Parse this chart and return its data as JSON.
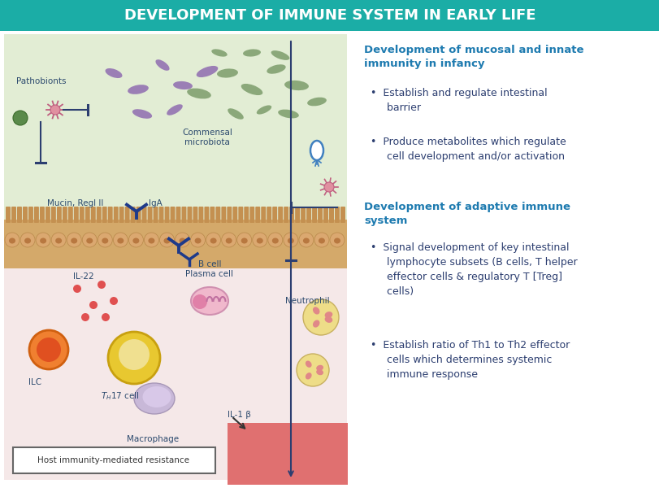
{
  "title": "DEVELOPMENT OF IMMUNE SYSTEM IN EARLY LIFE",
  "title_bg_color": "#1BADA6",
  "title_text_color": "#FFFFFF",
  "bg_color": "#FFFFFF",
  "left_panel_bg_top": "#E2EDD4",
  "left_panel_bg_bottom": "#F5E8E8",
  "intestine_color": "#D4A96A",
  "intestine_villus_color": "#C49050",
  "blood_vessel_color": "#E07070",
  "heading_color": "#1E7BB0",
  "bullet_color": "#2C3E70",
  "label_color": "#2C4A6E",
  "purple_bact": "#9B7FB5",
  "green_bact": "#8BA87A",
  "right_text_heading1": "Development of mucosal and innate\nimmunity in infancy",
  "right_text_heading2": "Development of adaptive immune\nsystem",
  "right_bullet1": "Establish and regulate intestinal\nbarrier",
  "right_bullet2": "Produce metabolites which regulate\ncell development and/or activation",
  "right_bullet3": "Signal development of key intestinal\nlymphocyte subsets (B cells, T helper\neffector cells & regulatory T [Treg]\ncells)",
  "right_bullet4": "Establish ratio of Th1 to Th2 effector\ncells which determines systemic\nimmune response",
  "label_pathobionts": "Pathobionts",
  "label_commensal": "Commensal\nmicrobiota",
  "label_mucin": "Mucin, RegI II",
  "label_iga": "IgA",
  "label_il22": "IL-22",
  "label_ilc": "ILC",
  "label_bcell": "B cell\nPlasma cell",
  "label_macrophage": "Macrophage",
  "label_il1b": "IL-1 β",
  "label_neutrophil": "Neutrophil",
  "label_host": "Host immunity-mediated resistance"
}
